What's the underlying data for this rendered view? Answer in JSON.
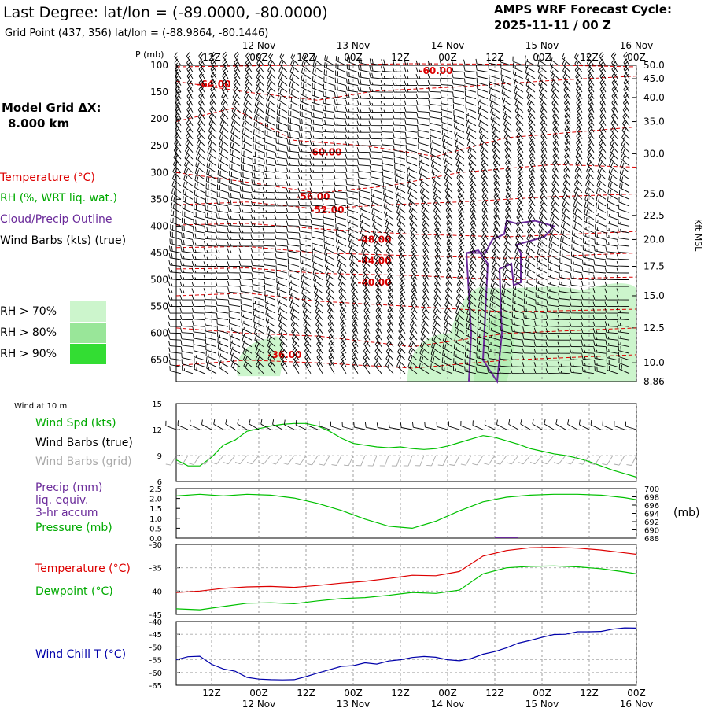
{
  "header": {
    "title": "Last Degree:  lat/lon = (-89.0000, -80.0000)",
    "grid_point": "Grid Point (437, 356) lat/lon = (-88.9864, -80.1446)",
    "cycle_label": "AMPS WRF Forecast Cycle:",
    "cycle_value": "2025-11-11 / 00  Z",
    "model_grid_label": "Model Grid ΔX:",
    "model_grid_value": "8.000 km"
  },
  "time_axis": {
    "time_labels": [
      "12Z",
      "00Z",
      "12Z",
      "00Z",
      "12Z",
      "00Z",
      "12Z",
      "00Z",
      "12Z",
      "00Z"
    ],
    "date_labels": [
      {
        "after_tick": 1,
        "text": "12 Nov"
      },
      {
        "after_tick": 3,
        "text": "13 Nov"
      },
      {
        "after_tick": 5,
        "text": "14 Nov"
      },
      {
        "after_tick": 7,
        "text": "15 Nov"
      },
      {
        "after_tick": 9,
        "text": "16 Nov"
      }
    ]
  },
  "colors": {
    "temperature": "#dd0000",
    "rh": "#00aa00",
    "cloud": "#6a2a9a",
    "wind_chill": "#0000aa",
    "barb": "#000000",
    "barb_grid": "#aaaaaa",
    "green": "#00c000",
    "rh70": "#ccf5cc",
    "rh80": "#99e699",
    "rh90": "#33dd33"
  },
  "chart_data": [
    {
      "type": "contour",
      "title": "Vertical cross-section",
      "ylabel": "P (mb)",
      "ylabel_right": "Kft MSL",
      "pressure_ticks": [
        100,
        150,
        200,
        250,
        300,
        350,
        400,
        450,
        500,
        550,
        600,
        650
      ],
      "pressure_range": [
        100,
        690
      ],
      "height_ticks": [
        {
          "p": 100,
          "label": "50.0"
        },
        {
          "p": 125,
          "label": "45.0"
        },
        {
          "p": 160,
          "label": "40.0"
        },
        {
          "p": 205,
          "label": "35.0"
        },
        {
          "p": 265,
          "label": "30.0"
        },
        {
          "p": 340,
          "label": "25.0"
        },
        {
          "p": 380,
          "label": "22.5"
        },
        {
          "p": 425,
          "label": "20.0"
        },
        {
          "p": 475,
          "label": "17.5"
        },
        {
          "p": 530,
          "label": "15.0"
        },
        {
          "p": 590,
          "label": "12.5"
        },
        {
          "p": 655,
          "label": "10.0"
        },
        {
          "p": 690,
          "label": "8.86"
        }
      ],
      "legend": {
        "temperature": "Temperature (°C)",
        "rh": "RH (%, WRT liq. wat.)",
        "cloud": "Cloud/Precip Outline",
        "barbs": "Wind Barbs (kts) (true)",
        "rh70": "RH > 70%",
        "rh80": "RH > 80%",
        "rh90": "RH > 90%"
      },
      "temperature_contours": [
        {
          "label": "-64.00",
          "p": 135,
          "t": 0.8
        },
        {
          "label": "-60.00",
          "p": 110,
          "t": 5.5
        },
        {
          "label": "-60.00",
          "p": 262,
          "t": 3.15
        },
        {
          "label": "-56.00",
          "p": 345,
          "t": 2.9
        },
        {
          "label": "-52.00",
          "p": 370,
          "t": 3.2
        },
        {
          "label": "-48.00",
          "p": 425,
          "t": 4.2
        },
        {
          "label": "-44.00",
          "p": 465,
          "t": 4.2
        },
        {
          "label": "-40.00",
          "p": 505,
          "t": 4.2
        },
        {
          "label": "-36.00",
          "p": 640,
          "t": 2.3
        }
      ]
    },
    {
      "type": "line",
      "title": "Wind at 10 m",
      "legend": [
        "Wind Spd (kts)",
        "Wind Barbs (true)",
        "Wind Barbs (grid)"
      ],
      "ylim": [
        6,
        15
      ],
      "yticks": [
        6,
        9,
        12,
        15
      ],
      "t": [
        0,
        0.25,
        0.5,
        0.75,
        1,
        1.25,
        1.5,
        1.75,
        2,
        2.25,
        2.5,
        2.75,
        3,
        3.25,
        3.5,
        3.75,
        4,
        4.25,
        4.5,
        4.75,
        5,
        5.25,
        5.5,
        5.75,
        6,
        6.25,
        6.5,
        6.75,
        7,
        7.25,
        7.5,
        7.75,
        8,
        8.25,
        8.5,
        8.75,
        9,
        9.25,
        9.5,
        9.75
      ],
      "values": [
        8.5,
        7.8,
        7.8,
        8.8,
        10.2,
        10.8,
        11.8,
        12.1,
        12.4,
        12.6,
        12.7,
        12.7,
        12.4,
        11.8,
        11.0,
        10.4,
        10.2,
        10.0,
        9.9,
        10.0,
        9.8,
        9.7,
        9.8,
        10.1,
        10.5,
        10.9,
        11.3,
        11.1,
        10.7,
        10.3,
        9.8,
        9.5,
        9.2,
        9.0,
        8.7,
        8.3,
        7.8,
        7.3,
        6.9,
        6.5
      ]
    },
    {
      "type": "line",
      "legend": [
        "Precip (mm)",
        "liq. equiv.",
        "3-hr accum",
        "Pressure (mb)"
      ],
      "ylim": [
        0,
        2.5
      ],
      "yticks": [
        0.0,
        0.5,
        1.0,
        1.5,
        2.0,
        2.5
      ],
      "y2lim": [
        688,
        700
      ],
      "y2ticks": [
        688,
        690,
        692,
        694,
        696,
        698,
        700
      ],
      "y2label": "(mb)",
      "t": [
        0,
        0.5,
        1,
        1.5,
        2,
        2.5,
        3,
        3.5,
        4,
        4.5,
        5,
        5.5,
        6,
        6.5,
        7,
        7.5,
        8,
        8.5,
        9,
        9.5,
        9.75
      ],
      "pressure_mb": [
        698.2,
        698.6,
        698.2,
        698.6,
        698.4,
        697.7,
        696.4,
        694.7,
        692.6,
        690.9,
        690.4,
        692.1,
        694.6,
        696.8,
        697.9,
        698.4,
        698.6,
        698.6,
        698.4,
        697.8,
        697.3
      ],
      "precip_mm": [
        0.0
      ]
    },
    {
      "type": "line",
      "legend": [
        "Temperature (°C)",
        "Dewpoint (°C)"
      ],
      "ylim": [
        -45,
        -30
      ],
      "yticks": [
        -45,
        -40,
        -35,
        -30
      ],
      "t": [
        0,
        0.5,
        1,
        1.5,
        2,
        2.5,
        3,
        3.5,
        4,
        4.5,
        5,
        5.5,
        6,
        6.5,
        7,
        7.5,
        8,
        8.5,
        9,
        9.5,
        9.75
      ],
      "temperature": [
        -40.3,
        -40.0,
        -39.4,
        -39.1,
        -39.0,
        -39.2,
        -38.8,
        -38.3,
        -37.9,
        -37.3,
        -36.6,
        -36.7,
        -35.8,
        -32.5,
        -31.3,
        -30.7,
        -30.6,
        -30.8,
        -31.2,
        -31.8,
        -32.1
      ],
      "dewpoint": [
        -43.8,
        -44.0,
        -43.3,
        -42.6,
        -42.5,
        -42.7,
        -42.1,
        -41.6,
        -41.4,
        -40.9,
        -40.3,
        -40.5,
        -39.8,
        -36.3,
        -35.0,
        -34.7,
        -34.6,
        -34.8,
        -35.2,
        -35.9,
        -36.3
      ]
    },
    {
      "type": "line",
      "legend": [
        "Wind Chill T (°C)"
      ],
      "ylim": [
        -65,
        -40
      ],
      "yticks": [
        -65,
        -60,
        -55,
        -50,
        -45,
        -40
      ],
      "t": [
        0,
        0.25,
        0.5,
        0.75,
        1,
        1.25,
        1.5,
        1.75,
        2,
        2.25,
        2.5,
        2.75,
        3,
        3.25,
        3.5,
        3.75,
        4,
        4.25,
        4.5,
        4.75,
        5,
        5.25,
        5.5,
        5.75,
        6,
        6.25,
        6.5,
        6.75,
        7,
        7.25,
        7.5,
        7.75,
        8,
        8.25,
        8.5,
        8.75,
        9,
        9.25,
        9.5,
        9.75
      ],
      "values": [
        -55.0,
        -53.8,
        -53.6,
        -56.8,
        -58.6,
        -59.5,
        -61.9,
        -62.6,
        -62.8,
        -62.9,
        -62.8,
        -61.6,
        -60.2,
        -58.9,
        -57.6,
        -57.3,
        -56.2,
        -56.7,
        -55.5,
        -55.0,
        -54.1,
        -53.7,
        -54.0,
        -55.0,
        -55.4,
        -54.5,
        -52.8,
        -51.8,
        -50.3,
        -48.5,
        -47.4,
        -46.2,
        -45.1,
        -45.0,
        -44.0,
        -44.0,
        -43.9,
        -43.0,
        -42.5,
        -42.6
      ]
    }
  ]
}
